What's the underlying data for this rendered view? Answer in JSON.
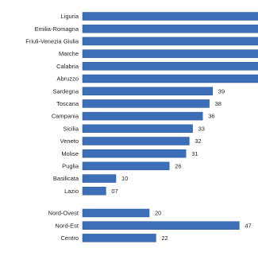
{
  "chart_data": {
    "type": "bar",
    "orientation": "horizontal",
    "title": "",
    "xlabel": "",
    "ylabel": "",
    "xlim": [
      0,
      60
    ],
    "grid": false,
    "legend": "none",
    "bar_color": "#3d6fb8",
    "categories": [
      "Liguria",
      "Emilia-Romagna",
      "Friuli-Venezia Giulia",
      "Marche",
      "Calabria",
      "Abruzzo",
      "Sardegna",
      "Toscana",
      "Campania",
      "Sicilia",
      "Veneto",
      "Molise",
      "Puglia",
      "Basilicata",
      "Lazio",
      "Nord-Ovest",
      "Nord-Est",
      "Centro"
    ],
    "values": [
      null,
      null,
      null,
      null,
      null,
      null,
      39,
      38,
      36,
      33,
      32,
      31,
      26,
      10,
      7,
      20,
      47,
      22
    ],
    "value_labels": [
      "",
      "",
      "",
      "",
      "",
      "",
      "39",
      "38",
      "36",
      "33",
      "32",
      "31",
      "26",
      "10",
      "07",
      "20",
      "47",
      "22"
    ],
    "extends_beyond_view": [
      true,
      true,
      true,
      true,
      true,
      true,
      false,
      false,
      false,
      false,
      false,
      false,
      false,
      false,
      false,
      false,
      false,
      false
    ],
    "group_break_before": [
      15
    ]
  }
}
